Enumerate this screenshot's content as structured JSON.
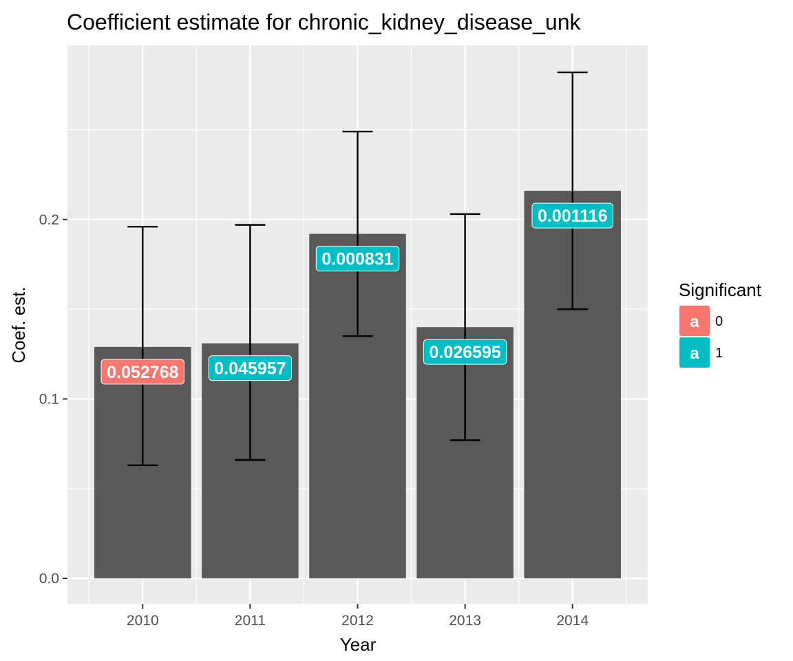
{
  "chart_data": {
    "type": "bar",
    "title": "Coefficient estimate for chronic_kidney_disease_unk",
    "xlabel": "Year",
    "ylabel": "Coef. est.",
    "categories": [
      "2010",
      "2011",
      "2012",
      "2013",
      "2014"
    ],
    "values": [
      0.129,
      0.131,
      0.192,
      0.14,
      0.216
    ],
    "error_lower": [
      0.063,
      0.066,
      0.135,
      0.077,
      0.15
    ],
    "error_upper": [
      0.196,
      0.197,
      0.249,
      0.203,
      0.282
    ],
    "bar_labels": [
      "0.052768",
      "0.045957",
      "0.000831",
      "0.026595",
      "0.001116"
    ],
    "significant": [
      "0",
      "1",
      "1",
      "1",
      "1"
    ],
    "ylim": [
      -0.014,
      0.297
    ],
    "y_ticks": [
      "0.0",
      "0.1",
      "0.2"
    ],
    "y_tick_values": [
      0.0,
      0.1,
      0.2
    ],
    "grid": true,
    "legend": {
      "title": "Significant",
      "position": "right",
      "glyph": "a",
      "entries": [
        {
          "label": "0",
          "color": "#F8766D"
        },
        {
          "label": "1",
          "color": "#00BFC4"
        }
      ]
    },
    "colors": {
      "bar": "#595959",
      "panel": "#EBEBEB",
      "grid": "#FFFFFF",
      "error_bar": "#000000"
    }
  }
}
